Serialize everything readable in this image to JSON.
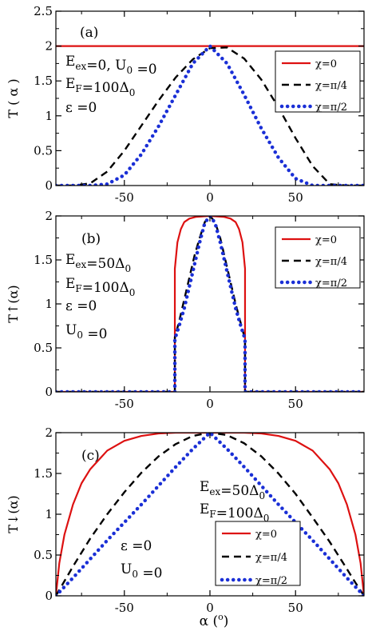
{
  "colors": {
    "chi0": "#dd1111",
    "chiPi4": "#000000",
    "chiPi2": "#1a2fd6"
  },
  "xlabel": {
    "main": "α (",
    "sup": "o",
    "end": ")"
  },
  "chart_data": [
    {
      "type": "line",
      "panel": "(a)",
      "ylabel": "T ( α )",
      "xlim": [
        -90,
        90
      ],
      "ylim": [
        0,
        2.5
      ],
      "xticks": [
        -50,
        0,
        50
      ],
      "yticks": [
        0,
        0.5,
        1,
        1.5,
        2,
        2.5
      ],
      "ytick_labels": [
        "0",
        "0.5",
        "1",
        "1.5",
        "2",
        "2.5"
      ],
      "grid": false,
      "legend_position": "top-right",
      "annotations": [
        [
          {
            "t": "E"
          },
          {
            "t": "ex",
            "sub": true
          },
          {
            "t": "=0, U"
          },
          {
            "t": "0",
            "sub": true
          },
          {
            "t": " =0"
          }
        ],
        [
          {
            "t": "E"
          },
          {
            "t": "F",
            "sub": true
          },
          {
            "t": "=100Δ"
          },
          {
            "t": "0",
            "sub": true
          }
        ],
        [
          {
            "t": "ε =0"
          }
        ]
      ],
      "series": [
        {
          "name": "χ=0",
          "color_key": "chi0",
          "style": "solid",
          "x": [
            -90,
            90
          ],
          "y": [
            2,
            2
          ]
        },
        {
          "name": "χ=π/4",
          "color_key": "chiPi4",
          "style": "dashed",
          "x": [
            -90,
            -80,
            -70,
            -60,
            -50,
            -40,
            -30,
            -20,
            -10,
            0,
            10,
            20,
            30,
            40,
            50,
            60,
            70,
            80,
            90
          ],
          "y": [
            0,
            0,
            0.03,
            0.2,
            0.5,
            0.86,
            1.22,
            1.55,
            1.81,
            1.97,
            1.98,
            1.82,
            1.52,
            1.12,
            0.68,
            0.28,
            0.02,
            0,
            0
          ]
        },
        {
          "name": "χ=π/2",
          "color_key": "chiPi2",
          "style": "dotted",
          "x": [
            -90,
            -80,
            -70,
            -60,
            -50,
            -40,
            -30,
            -20,
            -10,
            0,
            10,
            20,
            30,
            40,
            50,
            60,
            70,
            80,
            90
          ],
          "y": [
            0,
            0,
            0,
            0.02,
            0.15,
            0.45,
            0.85,
            1.3,
            1.75,
            2.0,
            1.75,
            1.3,
            0.82,
            0.4,
            0.1,
            0,
            0,
            0,
            0
          ]
        }
      ]
    },
    {
      "type": "line",
      "panel": "(b)",
      "ylabel": "T↑(α)",
      "xlim": [
        -90,
        90
      ],
      "ylim": [
        0,
        2.0
      ],
      "xticks": [
        -50,
        0,
        50
      ],
      "yticks": [
        0,
        0.5,
        1,
        1.5,
        2
      ],
      "ytick_labels": [
        "0",
        "0.5",
        "1",
        "1.5",
        "2"
      ],
      "grid": false,
      "legend_position": "top-right",
      "annotations": [
        [
          {
            "t": "E"
          },
          {
            "t": "ex",
            "sub": true
          },
          {
            "t": "=50Δ"
          },
          {
            "t": "0",
            "sub": true
          }
        ],
        [
          {
            "t": "E"
          },
          {
            "t": "F",
            "sub": true
          },
          {
            "t": "=100Δ"
          },
          {
            "t": "0",
            "sub": true
          }
        ],
        [
          {
            "t": "ε =0"
          }
        ],
        [
          {
            "t": "U"
          },
          {
            "t": "0",
            "sub": true
          },
          {
            "t": " =0"
          }
        ]
      ],
      "series": [
        {
          "name": "χ=0",
          "color_key": "chi0",
          "style": "solid",
          "x": [
            -90,
            -20.5,
            -20.5,
            -19,
            -17,
            -15,
            -12,
            -8,
            0,
            8,
            12,
            15,
            17,
            19,
            20.5,
            20.5,
            90
          ],
          "y": [
            0,
            0,
            1.4,
            1.7,
            1.85,
            1.93,
            1.97,
            1.99,
            2.0,
            1.99,
            1.97,
            1.93,
            1.85,
            1.7,
            1.4,
            0,
            0
          ]
        },
        {
          "name": "χ=π/4",
          "color_key": "chiPi4",
          "style": "dashed",
          "x": [
            -90,
            -20.5,
            -20.5,
            -18,
            -15,
            -12,
            -9,
            -6,
            -3,
            0,
            3,
            6,
            9,
            12,
            15,
            18,
            20.5,
            20.5,
            90
          ],
          "y": [
            0,
            0,
            0.62,
            0.8,
            1.05,
            1.3,
            1.55,
            1.75,
            1.93,
            2.0,
            1.93,
            1.75,
            1.5,
            1.25,
            1.0,
            0.78,
            0.6,
            0,
            0
          ]
        },
        {
          "name": "χ=π/2",
          "color_key": "chiPi2",
          "style": "dotted",
          "x": [
            -90,
            -20.5,
            -20.5,
            -18,
            -15,
            -12,
            -9,
            -6,
            -3,
            0,
            3,
            6,
            9,
            12,
            15,
            18,
            20.5,
            20.5,
            90
          ],
          "y": [
            0,
            0,
            0.6,
            0.75,
            0.95,
            1.2,
            1.45,
            1.7,
            1.92,
            2.0,
            1.92,
            1.7,
            1.45,
            1.2,
            0.95,
            0.75,
            0.6,
            0,
            0
          ]
        }
      ]
    },
    {
      "type": "line",
      "panel": "(c)",
      "ylabel": "T↓(α)",
      "xlim": [
        -90,
        90
      ],
      "ylim": [
        0,
        2.0
      ],
      "xticks": [
        -50,
        0,
        50
      ],
      "yticks": [
        0,
        0.5,
        1,
        1.5,
        2
      ],
      "ytick_labels": [
        "0",
        "0.5",
        "1",
        "1.5",
        "2"
      ],
      "grid": false,
      "legend_position": "bottom-right",
      "annotations": [
        [
          {
            "t": "E"
          },
          {
            "t": "ex",
            "sub": true
          },
          {
            "t": "=50Δ"
          },
          {
            "t": "0",
            "sub": true
          }
        ],
        [
          {
            "t": "E"
          },
          {
            "t": "F",
            "sub": true
          },
          {
            "t": "=100Δ"
          },
          {
            "t": "0",
            "sub": true
          }
        ],
        [
          {
            "t": "ε =0"
          }
        ],
        [
          {
            "t": "U"
          },
          {
            "t": "0",
            "sub": true
          },
          {
            "t": " =0"
          }
        ]
      ],
      "series": [
        {
          "name": "χ=0",
          "color_key": "chi0",
          "style": "solid",
          "x": [
            -90,
            -88,
            -85,
            -80,
            -75,
            -70,
            -60,
            -50,
            -40,
            -30,
            -20,
            -10,
            0,
            10,
            20,
            30,
            40,
            50,
            60,
            70,
            75,
            80,
            85,
            88,
            90
          ],
          "y": [
            0,
            0.4,
            0.75,
            1.12,
            1.38,
            1.55,
            1.78,
            1.9,
            1.96,
            1.99,
            2.0,
            2.0,
            2.0,
            2.0,
            2.0,
            1.99,
            1.96,
            1.9,
            1.78,
            1.55,
            1.38,
            1.12,
            0.75,
            0.4,
            0
          ]
        },
        {
          "name": "χ=π/4",
          "color_key": "chiPi4",
          "style": "dashed",
          "x": [
            -90,
            -85,
            -80,
            -70,
            -60,
            -50,
            -40,
            -30,
            -20,
            -10,
            0,
            10,
            20,
            30,
            40,
            50,
            60,
            70,
            80,
            85,
            90
          ],
          "y": [
            0,
            0.18,
            0.36,
            0.7,
            1.0,
            1.27,
            1.51,
            1.71,
            1.86,
            1.96,
            2.0,
            1.97,
            1.87,
            1.71,
            1.5,
            1.25,
            0.96,
            0.66,
            0.33,
            0.16,
            0
          ]
        },
        {
          "name": "χ=π/2",
          "color_key": "chiPi2",
          "style": "dotted",
          "x": [
            -90,
            -80,
            -70,
            -60,
            -50,
            -40,
            -30,
            -20,
            -10,
            0,
            10,
            20,
            30,
            40,
            50,
            60,
            70,
            80,
            90
          ],
          "y": [
            0,
            0.22,
            0.45,
            0.68,
            0.9,
            1.12,
            1.35,
            1.58,
            1.8,
            2.0,
            1.8,
            1.58,
            1.35,
            1.12,
            0.9,
            0.68,
            0.45,
            0.22,
            0
          ]
        }
      ]
    }
  ]
}
